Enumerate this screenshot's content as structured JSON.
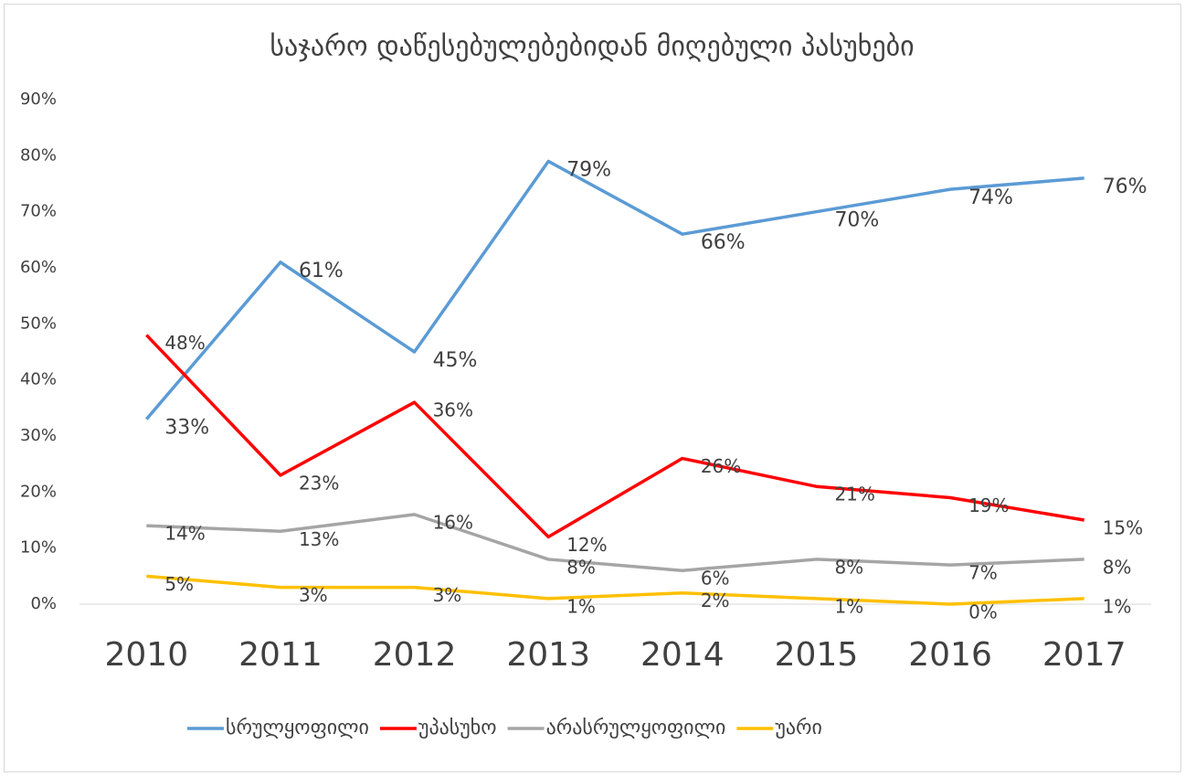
{
  "chart_data": {
    "type": "line",
    "title": "საჯარო დაწესებულებებიდან მიღებული პასუხები",
    "categories": [
      "2010",
      "2011",
      "2012",
      "2013",
      "2014",
      "2015",
      "2016",
      "2017"
    ],
    "series": [
      {
        "name": "სრულყოფილი",
        "color": "#5b9bd5",
        "values": [
          33,
          61,
          45,
          79,
          66,
          70,
          74,
          76
        ],
        "value_labels": [
          "33%",
          "61%",
          "45%",
          "79%",
          "66%",
          "70%",
          "74%",
          "76%"
        ]
      },
      {
        "name": "უპასუხო",
        "color": "#ff0000",
        "values": [
          48,
          23,
          36,
          12,
          26,
          21,
          19,
          15
        ],
        "value_labels": [
          "48%",
          "23%",
          "36%",
          "12%",
          "26%",
          "21%",
          "19%",
          "15%"
        ]
      },
      {
        "name": "არასრულყოფილი",
        "color": "#a5a5a5",
        "values": [
          14,
          13,
          16,
          8,
          6,
          8,
          7,
          8
        ],
        "value_labels": [
          "14%",
          "13%",
          "16%",
          "8%",
          "6%",
          "8%",
          "7%",
          "8%"
        ]
      },
      {
        "name": "უარი",
        "color": "#ffc000",
        "values": [
          5,
          3,
          3,
          1,
          2,
          1,
          0,
          1
        ],
        "value_labels": [
          "5%",
          "3%",
          "3%",
          "1%",
          "2%",
          "1%",
          "0%",
          "1%"
        ]
      }
    ],
    "ylim": [
      0,
      90
    ],
    "yticks": [
      {
        "value": 0,
        "label": "0%"
      },
      {
        "value": 10,
        "label": "10%"
      },
      {
        "value": 20,
        "label": "20%"
      },
      {
        "value": 30,
        "label": "30%"
      },
      {
        "value": 40,
        "label": "40%"
      },
      {
        "value": 50,
        "label": "50%"
      },
      {
        "value": 60,
        "label": "60%"
      },
      {
        "value": 70,
        "label": "70%"
      },
      {
        "value": 80,
        "label": "80%"
      },
      {
        "value": 90,
        "label": "90%"
      }
    ],
    "grid": false,
    "legend": "bottom"
  }
}
